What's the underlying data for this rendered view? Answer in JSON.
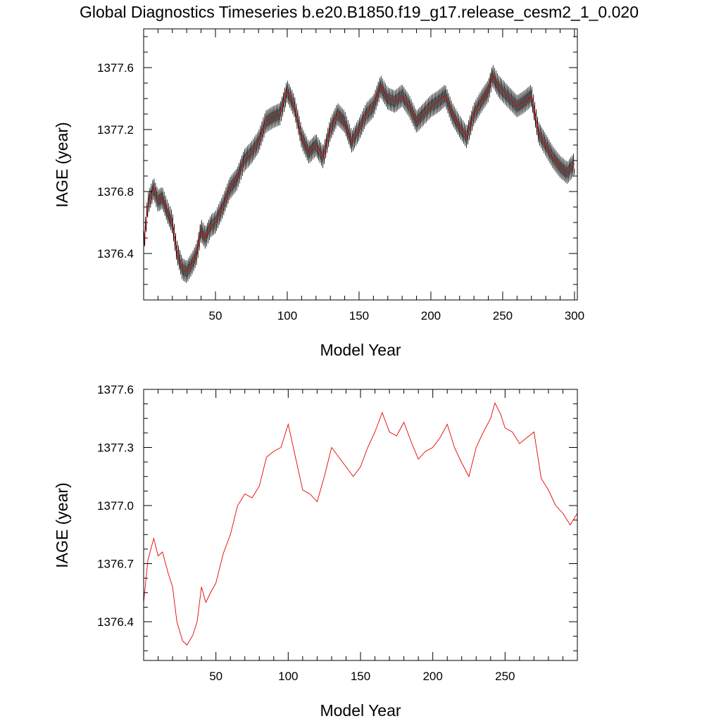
{
  "title": "Global Diagnostics Timeseries b.e20.B1850.f19_g17.release_cesm2_1_0.020",
  "colors": {
    "monthly": "#000000",
    "annual": "#e60000",
    "axis": "#000000"
  },
  "chart_data": [
    {
      "type": "line",
      "panel": "top",
      "xlabel": "Model Year",
      "ylabel": "IAGE (year)",
      "xlim": [
        0,
        302
      ],
      "ylim": [
        1376.1,
        1377.85
      ],
      "xticks": [
        50,
        100,
        150,
        200,
        250,
        300
      ],
      "xtick_labels": [
        "50",
        "100",
        "150",
        "200",
        "250",
        "300"
      ],
      "yticks": [
        1376.4,
        1376.8,
        1377.2,
        1377.6
      ],
      "ytick_labels": [
        "1376.4",
        "1376.8",
        "1377.2",
        "1377.6"
      ],
      "grid": false,
      "series": [
        {
          "role": "monthly",
          "color": "#000000",
          "amplitude": 0.06
        },
        {
          "role": "annual",
          "color": "#e60000"
        }
      ],
      "x": [
        0,
        3,
        7,
        10,
        13,
        17,
        20,
        23,
        27,
        30,
        34,
        37,
        40,
        43,
        47,
        50,
        55,
        60,
        65,
        70,
        75,
        80,
        85,
        90,
        95,
        100,
        105,
        110,
        115,
        120,
        125,
        130,
        135,
        140,
        145,
        150,
        155,
        160,
        165,
        170,
        175,
        180,
        185,
        190,
        195,
        200,
        205,
        210,
        215,
        220,
        225,
        230,
        235,
        240,
        243,
        247,
        250,
        255,
        260,
        265,
        270,
        275,
        280,
        285,
        290,
        295,
        300
      ],
      "y": [
        1376.44,
        1376.72,
        1376.82,
        1376.74,
        1376.76,
        1376.66,
        1376.6,
        1376.42,
        1376.3,
        1376.28,
        1376.34,
        1376.4,
        1376.55,
        1376.5,
        1376.58,
        1376.6,
        1376.7,
        1376.82,
        1376.88,
        1377.0,
        1377.05,
        1377.12,
        1377.25,
        1377.28,
        1377.3,
        1377.45,
        1377.35,
        1377.15,
        1377.05,
        1377.1,
        1377.02,
        1377.2,
        1377.3,
        1377.25,
        1377.12,
        1377.2,
        1377.3,
        1377.35,
        1377.48,
        1377.4,
        1377.38,
        1377.42,
        1377.35,
        1377.25,
        1377.3,
        1377.35,
        1377.38,
        1377.42,
        1377.3,
        1377.22,
        1377.15,
        1377.3,
        1377.38,
        1377.45,
        1377.55,
        1377.48,
        1377.45,
        1377.4,
        1377.35,
        1377.38,
        1377.42,
        1377.18,
        1377.1,
        1377.02,
        1376.96,
        1376.92,
        1376.98
      ]
    },
    {
      "type": "line",
      "panel": "bottom",
      "xlabel": "Model Year",
      "ylabel": "IAGE (year)",
      "xlim": [
        0,
        300
      ],
      "ylim": [
        1376.2,
        1377.6
      ],
      "xticks": [
        50,
        100,
        150,
        200,
        250
      ],
      "xtick_labels": [
        "50",
        "100",
        "150",
        "200",
        "250"
      ],
      "yticks": [
        1376.4,
        1376.7,
        1377.0,
        1377.3,
        1377.6
      ],
      "ytick_labels": [
        "1376.4",
        "1376.7",
        "1377.0",
        "1377.3",
        "1377.6"
      ],
      "grid": false,
      "series": [
        {
          "role": "annual",
          "color": "#e60000"
        }
      ],
      "x": [
        0,
        3,
        7,
        10,
        13,
        17,
        20,
        23,
        27,
        30,
        34,
        37,
        40,
        43,
        47,
        50,
        55,
        60,
        65,
        70,
        75,
        80,
        85,
        90,
        95,
        100,
        105,
        110,
        115,
        120,
        125,
        130,
        135,
        140,
        145,
        150,
        155,
        160,
        165,
        170,
        175,
        180,
        185,
        190,
        195,
        200,
        205,
        210,
        215,
        220,
        225,
        230,
        235,
        240,
        243,
        247,
        250,
        255,
        260,
        265,
        270,
        275,
        280,
        285,
        290,
        295,
        300
      ],
      "y": [
        1376.5,
        1376.72,
        1376.83,
        1376.74,
        1376.76,
        1376.65,
        1376.58,
        1376.4,
        1376.3,
        1376.28,
        1376.33,
        1376.4,
        1376.58,
        1376.5,
        1376.56,
        1376.6,
        1376.75,
        1376.85,
        1377.0,
        1377.06,
        1377.04,
        1377.1,
        1377.25,
        1377.28,
        1377.3,
        1377.42,
        1377.25,
        1377.08,
        1377.06,
        1377.02,
        1377.15,
        1377.3,
        1377.25,
        1377.2,
        1377.15,
        1377.2,
        1377.3,
        1377.38,
        1377.48,
        1377.38,
        1377.36,
        1377.43,
        1377.33,
        1377.24,
        1377.28,
        1377.3,
        1377.35,
        1377.42,
        1377.3,
        1377.22,
        1377.15,
        1377.3,
        1377.38,
        1377.45,
        1377.53,
        1377.47,
        1377.4,
        1377.38,
        1377.32,
        1377.35,
        1377.38,
        1377.14,
        1377.08,
        1377.0,
        1376.96,
        1376.9,
        1376.96
      ]
    }
  ]
}
